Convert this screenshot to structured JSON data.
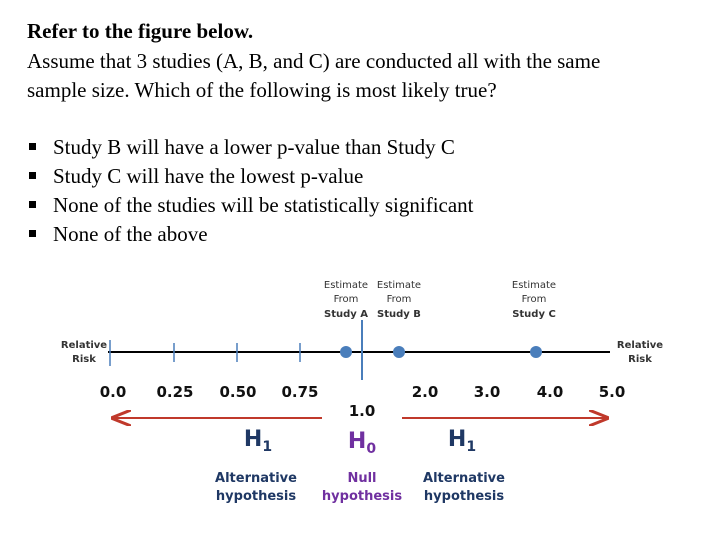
{
  "header": {
    "title": "Refer to the figure below."
  },
  "question": {
    "lines": [
      "Assume that 3 studies (A, B, and C) are conducted all with the same",
      "sample size. Which of the following is most likely true?"
    ]
  },
  "options": [
    "Study B will have a lower p-value than Study C",
    "Study C will have the lowest p-value",
    "None of the studies will be statistically significant",
    "None of the above"
  ],
  "figure": {
    "estimates": [
      {
        "lines": [
          "Estimate",
          "From",
          "Study A"
        ]
      },
      {
        "lines": [
          "Estimate",
          "From",
          "Study B"
        ]
      },
      {
        "lines": [
          "Estimate",
          "From",
          "Study C"
        ]
      }
    ],
    "axis_label_left": [
      "Relative",
      "Risk"
    ],
    "axis_label_right": [
      "Relative",
      "Risk"
    ],
    "tick_labels": [
      "0.0",
      "0.25",
      "0.50",
      "0.75",
      "1.0",
      "2.0",
      "3.0",
      "4.0",
      "5.0"
    ],
    "hypotheses": [
      {
        "symbol": "H",
        "sub": "1",
        "lines": [
          "Alternative",
          "hypothesis"
        ]
      },
      {
        "symbol": "H",
        "sub": "0",
        "lines": [
          "Null",
          "hypothesis"
        ]
      },
      {
        "symbol": "H",
        "sub": "1",
        "lines": [
          "Alternative",
          "hypothesis"
        ]
      }
    ]
  }
}
